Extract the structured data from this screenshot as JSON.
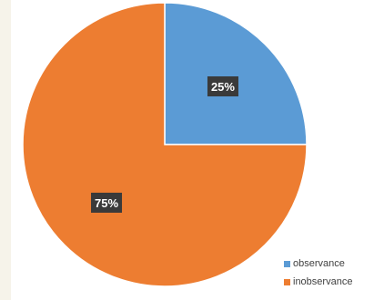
{
  "chart_data": {
    "type": "pie",
    "title": "",
    "slices": [
      {
        "label": "observance",
        "value": 25,
        "color": "#5b9bd5",
        "data_label": "25%"
      },
      {
        "label": "inobservance",
        "value": 75,
        "color": "#ed7d31",
        "data_label": "75%"
      }
    ],
    "start_angle_deg": 0,
    "direction": "clockwise",
    "legend_position": "bottom-right"
  }
}
